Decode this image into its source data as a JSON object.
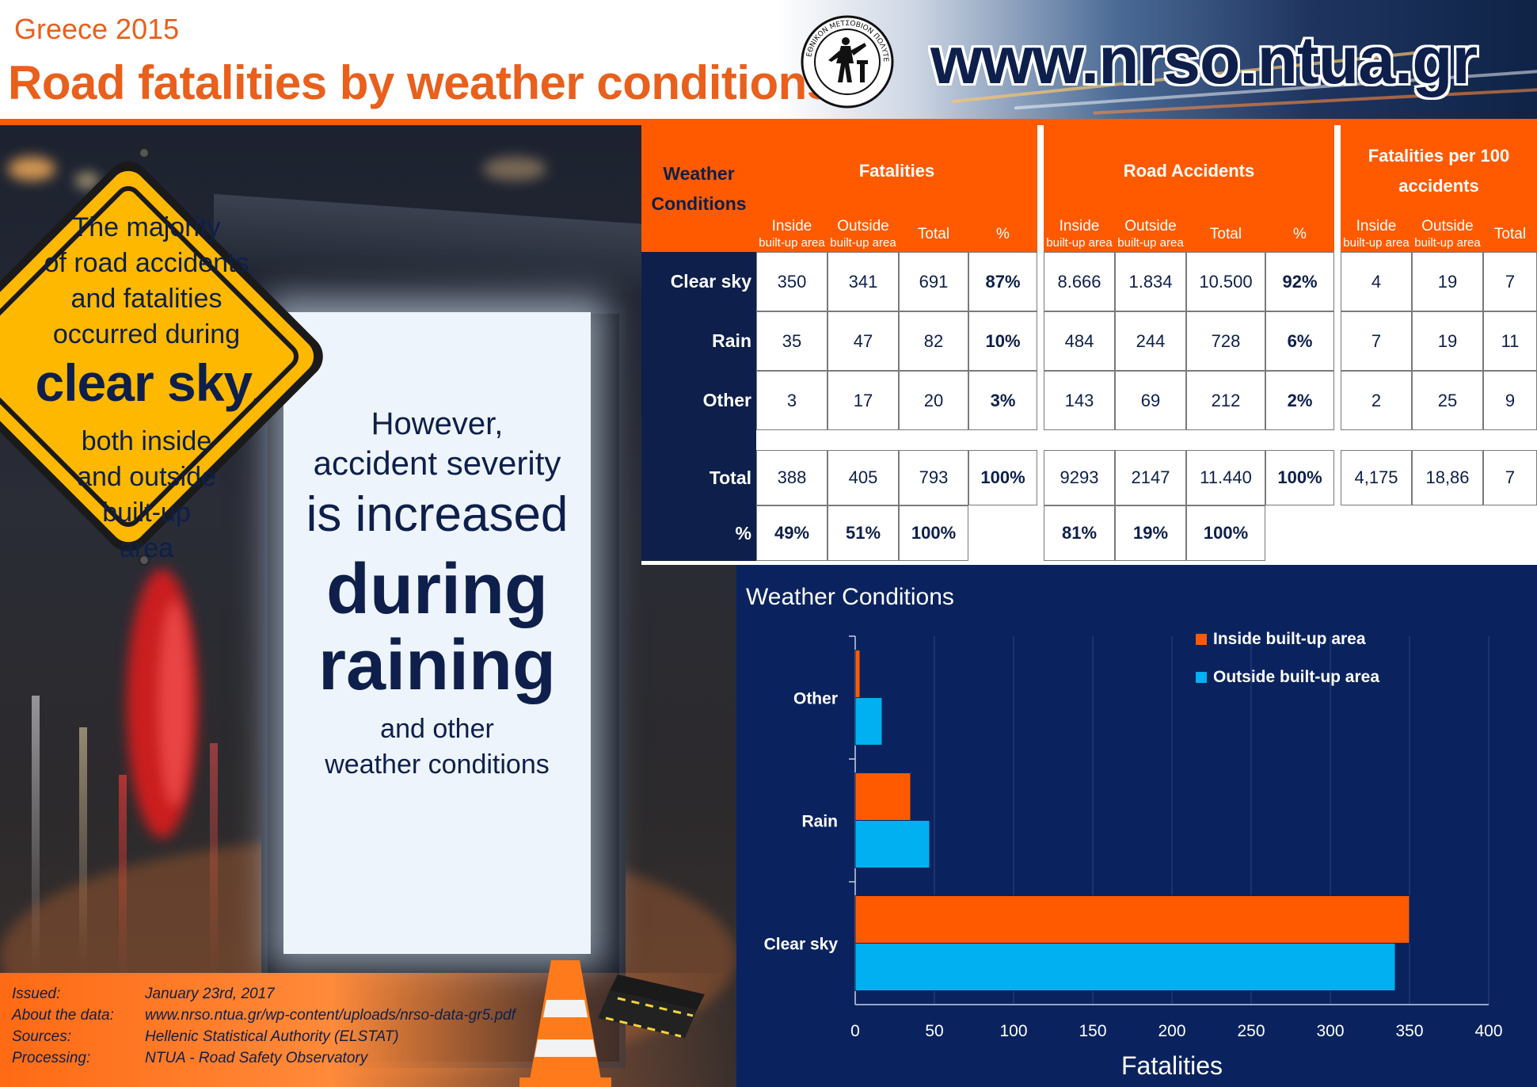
{
  "header": {
    "subtitle": "Greece 2015",
    "title": "Road fatalities by weather conditions",
    "website": "www.nrso.ntua.gr",
    "seal_text": "ΕΘΝΙΚΟΝ ΜΕΤΣΟΒΙΟΝ ΠΟΛΥΤΕΧΝΕΙΟΝ"
  },
  "sign": {
    "line1": "The majority",
    "line2": "of road accidents",
    "line3": "and fatalities",
    "line4": "occurred during",
    "bold": "clear sky",
    "comma": ",",
    "line5": "both inside",
    "line6": "and outside",
    "line7": "built-up",
    "line8": "area"
  },
  "poster": {
    "line1": "However,",
    "line2": "accident severity",
    "line3": "is increased",
    "line4": "during",
    "line5": "raining",
    "line6": "and other",
    "line7": "weather conditions"
  },
  "info": {
    "issued_label": "Issued:",
    "issued_value": "January 23rd, 2017",
    "about_label": "About the data:",
    "about_value": "www.nrso.ntua.gr/wp-content/uploads/nrso-data-gr5.pdf",
    "sources_label": "Sources:",
    "sources_value": "Hellenic Statistical Authority (ELSTAT)",
    "processing_label": "Processing:",
    "processing_value": "NTUA - Road Safety Observatory"
  },
  "table": {
    "corner_label": "Weather Conditions",
    "groups": [
      "Fatalities",
      "Road Accidents",
      "Fatalities per 100 accidents"
    ],
    "inside_label": "Inside",
    "outside_label": "Outside",
    "builtup_label": "built-up area",
    "total_label": "Total",
    "pct_label": "%",
    "rows": [
      {
        "label": "Clear sky",
        "f_in": "350",
        "f_out": "341",
        "f_tot": "691",
        "f_pct": "87%",
        "a_in": "8.666",
        "a_out": "1.834",
        "a_tot": "10.500",
        "a_pct": "92%",
        "r_in": "4",
        "r_out": "19",
        "r_tot": "7"
      },
      {
        "label": "Rain",
        "f_in": "35",
        "f_out": "47",
        "f_tot": "82",
        "f_pct": "10%",
        "a_in": "484",
        "a_out": "244",
        "a_tot": "728",
        "a_pct": "6%",
        "r_in": "7",
        "r_out": "19",
        "r_tot": "11"
      },
      {
        "label": "Other",
        "f_in": "3",
        "f_out": "17",
        "f_tot": "20",
        "f_pct": "3%",
        "a_in": "143",
        "a_out": "69",
        "a_tot": "212",
        "a_pct": "2%",
        "r_in": "2",
        "r_out": "25",
        "r_tot": "9"
      }
    ],
    "total_row": {
      "label": "Total",
      "f_in": "388",
      "f_out": "405",
      "f_tot": "793",
      "f_pct": "100%",
      "a_in": "9293",
      "a_out": "2147",
      "a_tot": "11.440",
      "a_pct": "100%",
      "r_in": "4,175",
      "r_out": "18,86",
      "r_tot": "7"
    },
    "pct_row": {
      "label": "%",
      "f_in": "49%",
      "f_out": "51%",
      "f_tot": "100%",
      "a_in": "81%",
      "a_out": "19%",
      "a_tot": "100%"
    }
  },
  "chart_data": {
    "type": "bar",
    "orientation": "horizontal",
    "title": "Weather Conditions",
    "xlabel": "Fatalities",
    "ylabel": "",
    "categories": [
      "Clear sky",
      "Rain",
      "Other"
    ],
    "series": [
      {
        "name": "Inside  built-up area",
        "values": [
          350,
          35,
          3
        ],
        "color": "#ff5a00"
      },
      {
        "name": "Outside  built-up area",
        "values": [
          341,
          47,
          17
        ],
        "color": "#00b0f0"
      }
    ],
    "xlim": [
      0,
      400
    ],
    "xticks": [
      0,
      50,
      100,
      150,
      200,
      250,
      300,
      350,
      400
    ],
    "grid": true,
    "legend_position": "top-right",
    "background": "#0a235f"
  },
  "colors": {
    "accent_orange": "#ff5a00",
    "navy": "#0d1f4a",
    "sign_yellow": "#ffb800",
    "chart_bg": "#0a235f"
  }
}
